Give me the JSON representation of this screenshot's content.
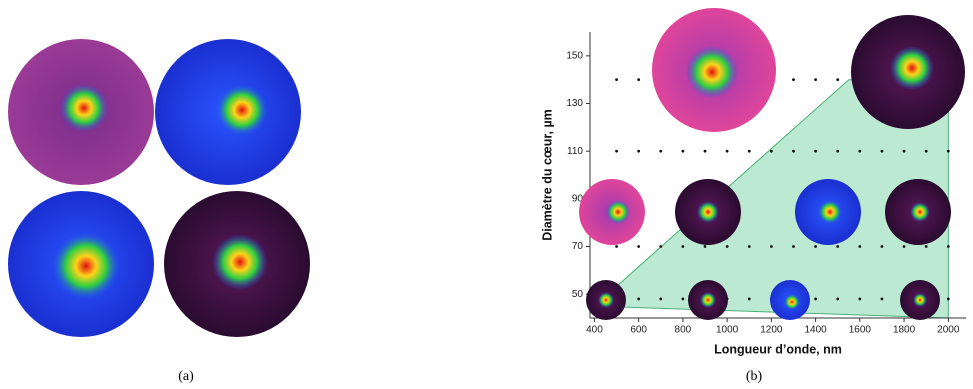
{
  "panel_a": {
    "caption": "(a)"
  },
  "chart_data": {
    "type": "scatter",
    "caption": "(b)",
    "x_label": "Longueur d’onde, nm",
    "y_label": "Diamètre du cœur, µm",
    "xlim": [
      380,
      2080
    ],
    "ylim": [
      40,
      160
    ],
    "xticks": [
      400,
      600,
      800,
      1000,
      1200,
      1400,
      1600,
      1800,
      2000
    ],
    "yticks": [
      50,
      70,
      90,
      110,
      130,
      150
    ],
    "region": {
      "color": "#9fe0bf",
      "x": [
        400,
        1550,
        2000,
        2000
      ],
      "y": [
        45,
        140,
        140,
        40
      ]
    },
    "series": [
      {
        "color": "#111111",
        "x": [
          500,
          600,
          700,
          800,
          900,
          1000,
          1100,
          1200,
          1300,
          1400,
          1500,
          1600,
          1700,
          1800,
          1900,
          2000,
          500,
          600,
          700,
          800,
          900,
          1000,
          1100,
          1200,
          1300,
          1400,
          1500,
          1600,
          1700,
          1800,
          1900,
          2000,
          500,
          600,
          700,
          800,
          900,
          1000,
          1100,
          1200,
          1300,
          1400,
          1500,
          1600,
          1700,
          1800,
          1900,
          2000,
          500,
          600,
          700,
          800,
          900,
          1000,
          1100,
          1200,
          1300,
          1400,
          1500,
          1600,
          1700,
          1800,
          1900,
          2000
        ],
        "values": [
          140,
          140,
          140,
          140,
          140,
          140,
          140,
          140,
          140,
          140,
          140,
          140,
          140,
          140,
          140,
          140,
          110,
          110,
          110,
          110,
          110,
          110,
          110,
          110,
          110,
          110,
          110,
          110,
          110,
          110,
          110,
          110,
          70,
          70,
          70,
          70,
          70,
          70,
          70,
          70,
          70,
          70,
          70,
          70,
          70,
          70,
          70,
          70,
          48,
          48,
          48,
          48,
          48,
          48,
          48,
          48,
          48,
          48,
          48,
          48,
          48,
          48,
          48,
          48
        ]
      }
    ]
  }
}
